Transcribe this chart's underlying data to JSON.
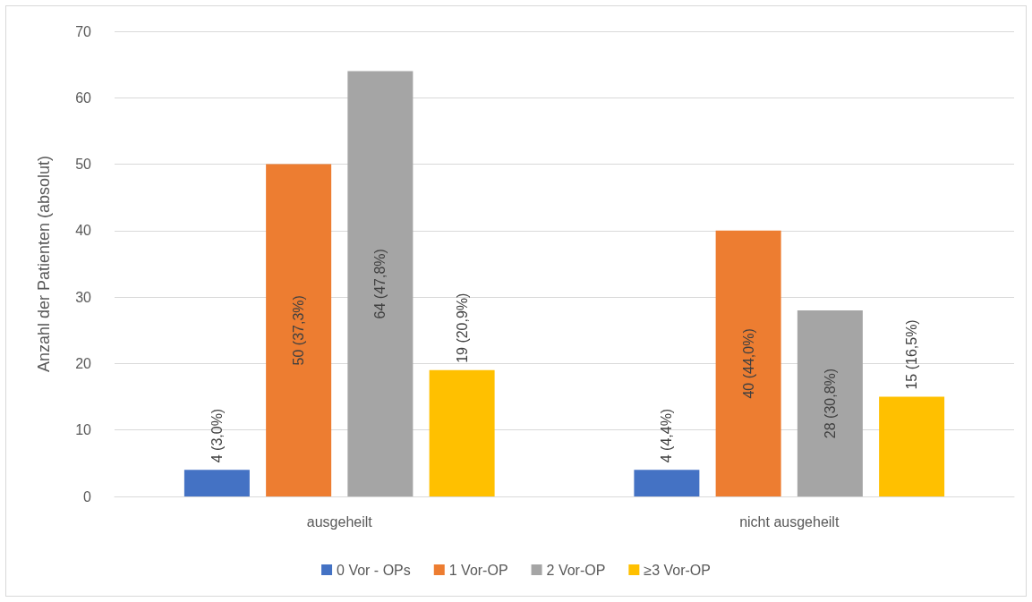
{
  "chart_data": {
    "type": "bar",
    "ylabel": "Anzahl der Patienten (absolut)",
    "categories": [
      "ausgeheilt",
      "nicht ausgeheilt"
    ],
    "series": [
      {
        "name": "0 Vor - OPs",
        "color": "#4472c4",
        "values": [
          4,
          4
        ],
        "value_labels": [
          "4 (3,0%)",
          "4 (4,4%)"
        ]
      },
      {
        "name": "1 Vor-OP",
        "color": "#ed7d31",
        "values": [
          50,
          40
        ],
        "value_labels": [
          "50 (37,3%)",
          "40 (44,0%)"
        ]
      },
      {
        "name": "2 Vor-OP",
        "color": "#a5a5a5",
        "values": [
          64,
          28
        ],
        "value_labels": [
          "64 (47,8%)",
          "28 (30,8%)"
        ]
      },
      {
        "name": "≥3 Vor-OP",
        "color": "#ffc000",
        "values": [
          19,
          15
        ],
        "value_labels": [
          "19 (20,9%)",
          "15 (16,5%)"
        ]
      }
    ],
    "ylim": [
      0,
      70
    ],
    "yticks": [
      0,
      10,
      20,
      30,
      40,
      50,
      60,
      70
    ],
    "grid": "y",
    "legend": "bottom"
  }
}
